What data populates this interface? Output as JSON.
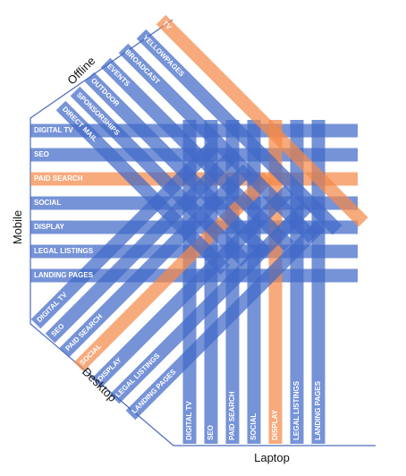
{
  "axes": {
    "offline": "Offline",
    "mobile": "Mobile",
    "desktop": "Desktop",
    "laptop": "Laptop"
  },
  "colors": {
    "band": "#4169c8",
    "highlight": "#f4894a",
    "outline": "#4a6cb8",
    "label_text": "#ffffff"
  },
  "groups": {
    "offline": {
      "highlight": "TV",
      "labels": [
        "DIRECT MAIL",
        "SPONSORSHIPS",
        "OUTDOOR",
        "EVENTS",
        "BROADCAST",
        "YELLOWPAGES",
        "TV"
      ]
    },
    "mobile": {
      "highlight": "PAID SEARCH",
      "labels": [
        "DIGITAL TV",
        "SEO",
        "PAID SEARCH",
        "SOCIAL",
        "DISPLAY",
        "LEGAL LISTINGS",
        "LANDING PAGES"
      ]
    },
    "desktop": {
      "highlight": "SOCIAL",
      "labels": [
        "DIGITAL TV",
        "SEO",
        "PAID SEARCH",
        "SOCIAL",
        "DISPLAY",
        "LEGAL LISTINGS",
        "LANDING PAGES"
      ]
    },
    "laptop": {
      "highlight": "DISPLAY",
      "labels": [
        "DIGITAL TV",
        "SEO",
        "PAID SEARCH",
        "SOCIAL",
        "DISPLAY",
        "LEGAL LISTINGS",
        "LANDING PAGES"
      ]
    }
  }
}
